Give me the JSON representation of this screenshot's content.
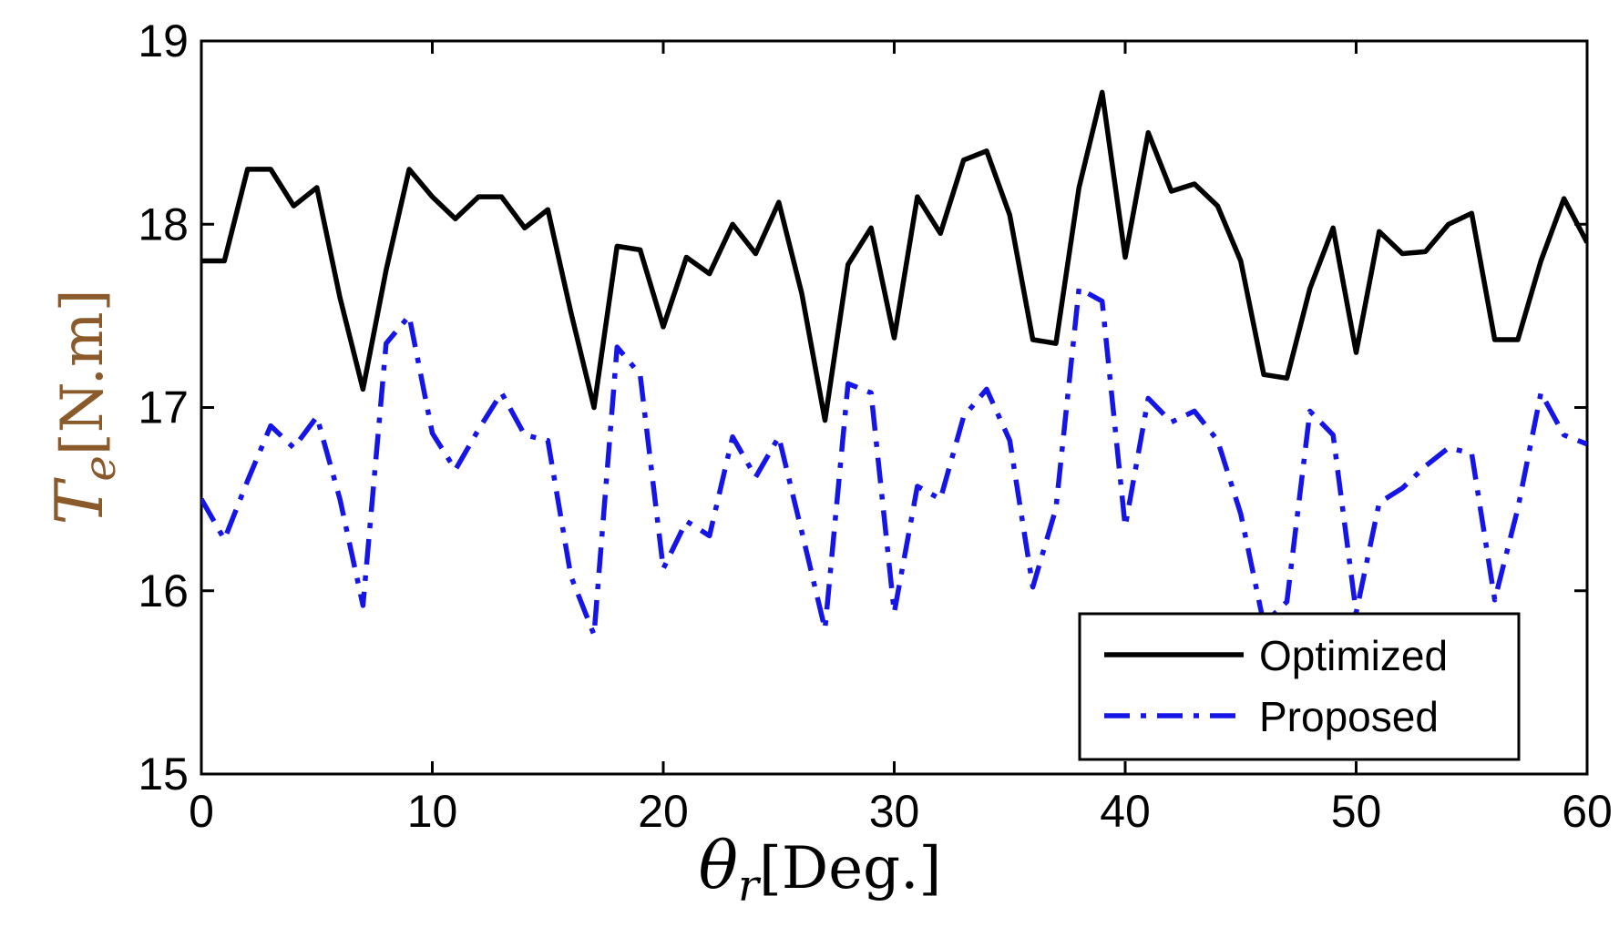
{
  "chart_data": {
    "type": "line",
    "title": "",
    "xlabel": {
      "symbol": "θ",
      "subscript": "r",
      "unit": "[Deg.]"
    },
    "ylabel": {
      "symbol": "T",
      "subscript": "e",
      "unit": "[N.m]"
    },
    "xlim": [
      0,
      60
    ],
    "ylim": [
      15,
      19
    ],
    "xticks": [
      0,
      10,
      20,
      30,
      40,
      50,
      60
    ],
    "yticks": [
      15,
      16,
      17,
      18,
      19
    ],
    "grid": false,
    "legend_position": "bottom-right",
    "colors": {
      "optimized": "#000000",
      "proposed": "#1515e8",
      "ylabel": "#8a5a2b",
      "xlabel": "#000000"
    },
    "series": [
      {
        "name": "Optimized",
        "style": "solid",
        "x": [
          0,
          1,
          2,
          3,
          4,
          5,
          6,
          7,
          8,
          9,
          10,
          11,
          12,
          13,
          14,
          15,
          16,
          17,
          18,
          19,
          20,
          21,
          22,
          23,
          24,
          25,
          26,
          27,
          28,
          29,
          30,
          31,
          32,
          33,
          34,
          35,
          36,
          37,
          38,
          39,
          40,
          41,
          42,
          43,
          44,
          45,
          46,
          47,
          48,
          49,
          50,
          51,
          52,
          53,
          54,
          55,
          56,
          57,
          58,
          59,
          60
        ],
        "values": [
          17.8,
          17.8,
          18.3,
          18.3,
          18.1,
          18.2,
          17.6,
          17.1,
          17.75,
          18.3,
          18.15,
          18.03,
          18.15,
          18.15,
          17.98,
          18.08,
          17.52,
          17.0,
          17.88,
          17.86,
          17.44,
          17.82,
          17.73,
          18.0,
          17.84,
          18.12,
          17.62,
          16.93,
          17.78,
          17.98,
          17.38,
          18.15,
          17.95,
          18.35,
          18.4,
          18.05,
          17.37,
          17.35,
          18.2,
          18.72,
          17.82,
          18.5,
          18.18,
          18.22,
          18.1,
          17.8,
          17.18,
          17.16,
          17.65,
          17.98,
          17.3,
          17.96,
          17.84,
          17.85,
          18.0,
          18.06,
          17.37,
          17.37,
          17.8,
          18.14,
          17.9
        ],
        "x_max_drawn": 60
      },
      {
        "name": "Proposed",
        "style": "dash-dot",
        "x": [
          0,
          1,
          2,
          3,
          4,
          5,
          6,
          7,
          8,
          9,
          10,
          11,
          12,
          13,
          14,
          15,
          16,
          17,
          18,
          19,
          20,
          21,
          22,
          23,
          24,
          25,
          26,
          27,
          28,
          29,
          30,
          31,
          32,
          33,
          34,
          35,
          36,
          37,
          38,
          39,
          40,
          41,
          42,
          43,
          44,
          45,
          46,
          47,
          48,
          49,
          50,
          51,
          52,
          53,
          54,
          55,
          56,
          57,
          58,
          59,
          60
        ],
        "values": [
          16.5,
          16.28,
          16.6,
          16.9,
          16.78,
          16.95,
          16.5,
          15.92,
          17.35,
          17.5,
          16.86,
          16.66,
          16.88,
          17.08,
          16.85,
          16.82,
          16.08,
          15.76,
          17.33,
          17.18,
          16.12,
          16.38,
          16.3,
          16.84,
          16.62,
          16.84,
          16.32,
          15.79,
          17.13,
          17.08,
          15.88,
          16.57,
          16.5,
          16.95,
          17.1,
          16.82,
          16.02,
          16.45,
          17.65,
          17.58,
          16.35,
          17.05,
          16.92,
          16.98,
          16.82,
          16.42,
          15.82,
          15.94,
          16.98,
          16.85,
          15.88,
          16.48,
          16.56,
          16.68,
          16.78,
          16.75,
          15.95,
          16.45,
          17.08,
          16.85,
          16.8
        ]
      }
    ]
  }
}
